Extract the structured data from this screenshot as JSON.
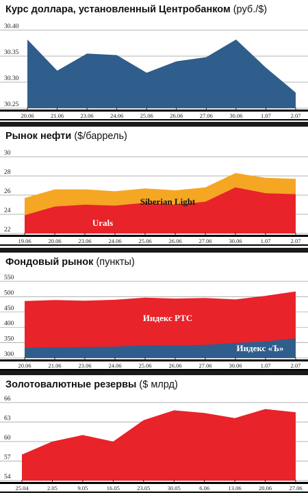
{
  "chart_data": [
    {
      "type": "area",
      "title": "Курс доллара, установленный Центробанком",
      "unit": "(руб./$)",
      "categories": [
        "20.06",
        "21.06",
        "23.06",
        "24.06",
        "25.06",
        "26.06",
        "27.06",
        "30.06",
        "1.07",
        "2.07"
      ],
      "series": [
        {
          "name": "",
          "values": [
            30.382,
            30.322,
            30.355,
            30.352,
            30.318,
            30.34,
            30.348,
            30.382,
            30.328,
            30.28
          ],
          "color": "#2f5d8c"
        }
      ],
      "yticks": [
        "30.40",
        "30.35",
        "30.30",
        "30.25"
      ],
      "ylim": [
        30.25,
        30.4
      ],
      "grid": true
    },
    {
      "type": "area",
      "title": "Рынок нефти",
      "unit": "($/баррель)",
      "categories": [
        "19.06",
        "20.06",
        "23.06",
        "24.06",
        "25.06",
        "26.06",
        "27.06",
        "30.06",
        "1.07",
        "2.07"
      ],
      "series": [
        {
          "name": "Siberian Light",
          "values": [
            25.7,
            26.6,
            26.6,
            26.4,
            26.7,
            26.5,
            26.8,
            28.3,
            27.8,
            27.7
          ],
          "color": "#f5a623"
        },
        {
          "name": "Urals",
          "values": [
            23.9,
            24.8,
            25.0,
            24.9,
            25.2,
            25.0,
            25.3,
            26.8,
            26.2,
            26.1
          ],
          "color": "#e8232a"
        }
      ],
      "yticks": [
        "30",
        "28",
        "26",
        "24",
        "22"
      ],
      "ylim": [
        22,
        30
      ],
      "grid": true
    },
    {
      "type": "area",
      "title": "Фондовый рынок",
      "unit": "(пункты)",
      "categories": [
        "20.06",
        "21.06",
        "23.06",
        "24.06",
        "25.06",
        "26.06",
        "27.06",
        "30.06",
        "1.07",
        "2.07"
      ],
      "series": [
        {
          "name": "Индекс РТС",
          "values": [
            486,
            489,
            487,
            490,
            497,
            494,
            496,
            491,
            503,
            517
          ],
          "color": "#e8232a"
        },
        {
          "name": "Индекс «Ъ»",
          "values": [
            333,
            335,
            336,
            337,
            342,
            341,
            343,
            349,
            354,
            364
          ],
          "color": "#2f5d8c"
        }
      ],
      "yticks": [
        "550",
        "500",
        "450",
        "400",
        "350",
        "300"
      ],
      "ylim": [
        300,
        550
      ],
      "grid": true
    },
    {
      "type": "area",
      "title": "Золотовалютные резервы",
      "unit": "($ млрд)",
      "categories": [
        "25.04",
        "2.05",
        "9.05",
        "16.05",
        "23.05",
        "30.05",
        "6.06",
        "13.06",
        "20.06",
        "27.06"
      ],
      "series": [
        {
          "name": "",
          "values": [
            58.0,
            60.0,
            61.0,
            60.0,
            63.3,
            64.8,
            64.4,
            63.6,
            65.0,
            64.5
          ],
          "color": "#e8232a"
        }
      ],
      "yticks": [
        "66",
        "63",
        "60",
        "57",
        "54"
      ],
      "ylim": [
        54,
        66
      ],
      "grid": true
    }
  ]
}
